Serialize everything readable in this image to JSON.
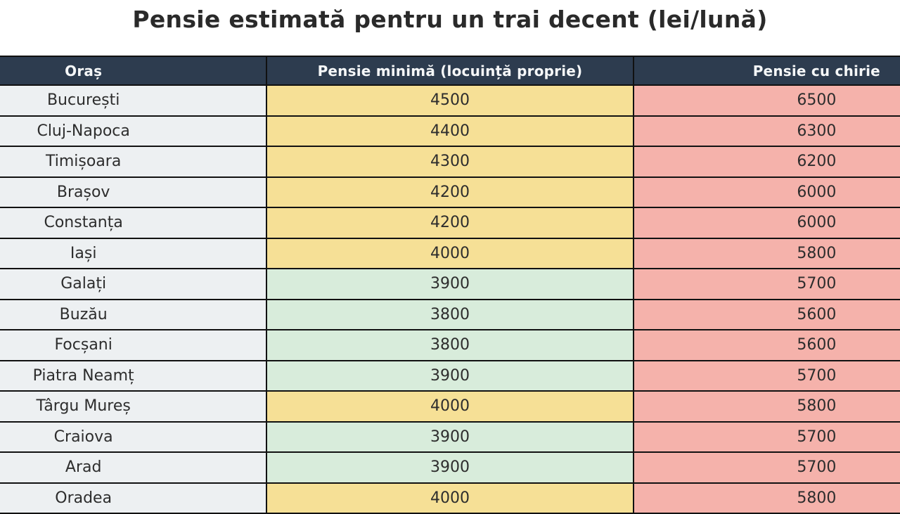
{
  "chart_data": {
    "type": "table",
    "title": "Pensie estimată pentru un trai decent (lei/lună)",
    "columns": [
      "Oraș",
      "Pensie minimă (locuință proprie)",
      "Pensie cu chirie"
    ],
    "rows": [
      {
        "city": "București",
        "pensie_minima": 4500,
        "pensie_cu_chirie": 6500,
        "min_cell_tone": "yellow"
      },
      {
        "city": "Cluj-Napoca",
        "pensie_minima": 4400,
        "pensie_cu_chirie": 6300,
        "min_cell_tone": "yellow"
      },
      {
        "city": "Timișoara",
        "pensie_minima": 4300,
        "pensie_cu_chirie": 6200,
        "min_cell_tone": "yellow"
      },
      {
        "city": "Brașov",
        "pensie_minima": 4200,
        "pensie_cu_chirie": 6000,
        "min_cell_tone": "yellow"
      },
      {
        "city": "Constanța",
        "pensie_minima": 4200,
        "pensie_cu_chirie": 6000,
        "min_cell_tone": "yellow"
      },
      {
        "city": "Iași",
        "pensie_minima": 4000,
        "pensie_cu_chirie": 5800,
        "min_cell_tone": "yellow"
      },
      {
        "city": "Galați",
        "pensie_minima": 3900,
        "pensie_cu_chirie": 5700,
        "min_cell_tone": "green"
      },
      {
        "city": "Buzău",
        "pensie_minima": 3800,
        "pensie_cu_chirie": 5600,
        "min_cell_tone": "green"
      },
      {
        "city": "Focșani",
        "pensie_minima": 3800,
        "pensie_cu_chirie": 5600,
        "min_cell_tone": "green"
      },
      {
        "city": "Piatra Neamț",
        "pensie_minima": 3900,
        "pensie_cu_chirie": 5700,
        "min_cell_tone": "green"
      },
      {
        "city": "Târgu Mureș",
        "pensie_minima": 4000,
        "pensie_cu_chirie": 5800,
        "min_cell_tone": "yellow"
      },
      {
        "city": "Craiova",
        "pensie_minima": 3900,
        "pensie_cu_chirie": 5700,
        "min_cell_tone": "green"
      },
      {
        "city": "Arad",
        "pensie_minima": 3900,
        "pensie_cu_chirie": 5700,
        "min_cell_tone": "green"
      },
      {
        "city": "Oradea",
        "pensie_minima": 4000,
        "pensie_cu_chirie": 5800,
        "min_cell_tone": "yellow"
      }
    ],
    "layout": {
      "legend": "none",
      "grid": "black cell borders",
      "note_units": "lei/lună"
    }
  },
  "colors": {
    "page-bg": "#ffffff",
    "title-text": "#2a2a2a",
    "header-bg": "#2d3c4f",
    "header-text": "#f5f7f8",
    "city-cell-bg": "#edf0f2",
    "yellow-cell-bg": "#f6e096",
    "green-cell-bg": "#d8ecdb",
    "rent-cell-bg": "#f5b2ab",
    "cell-text": "#2d2d2d",
    "border": "#111111"
  }
}
